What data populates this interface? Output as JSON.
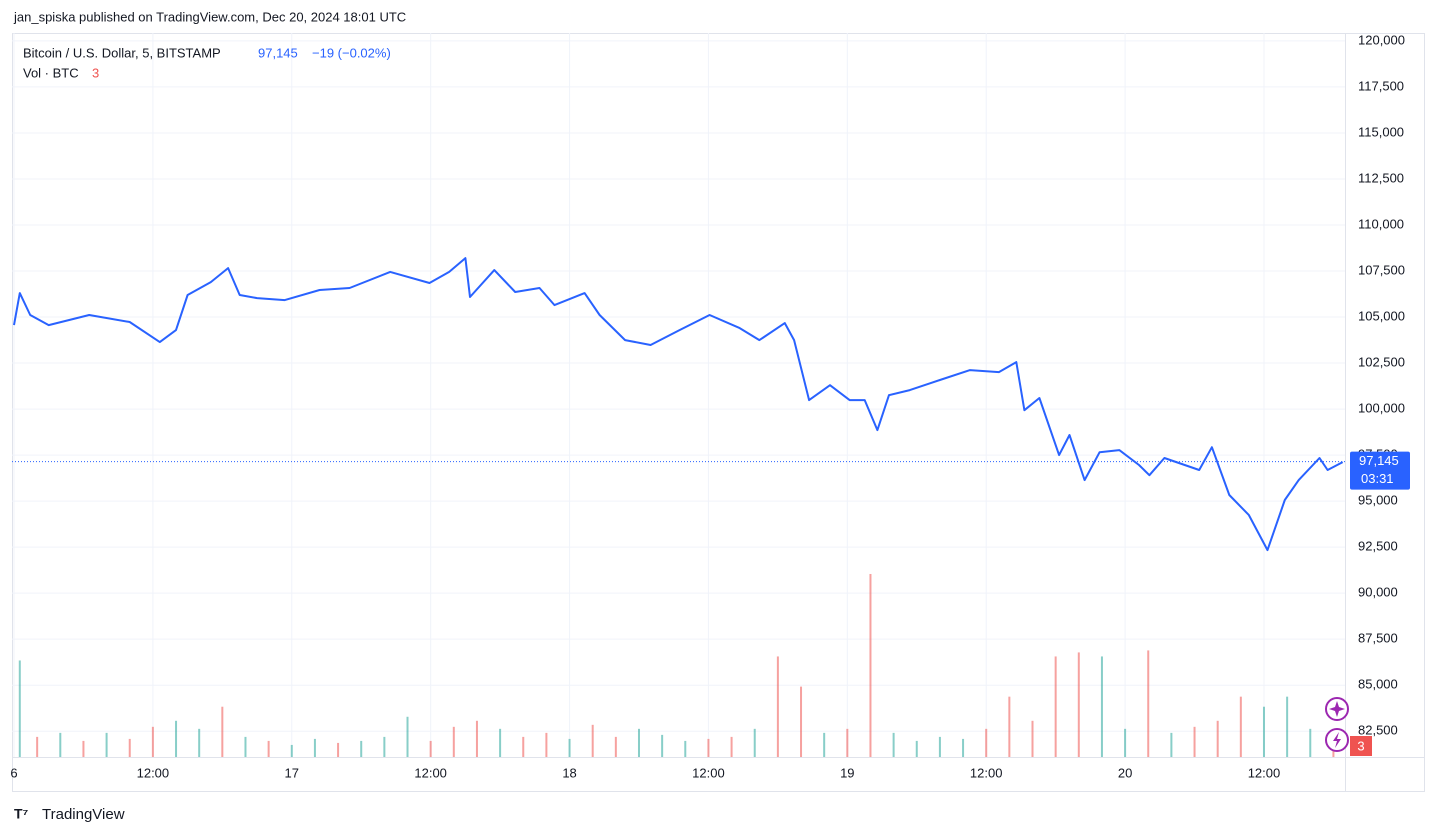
{
  "header": "jan_spiska published on TradingView.com, Dec 20, 2024 18:01 UTC",
  "footer": "TradingView",
  "chart_data": {
    "type": "line",
    "symbol": "Bitcoin / U.S. Dollar, 5, BITSTAMP",
    "last_price": {
      "value": 97145,
      "label": "97,145"
    },
    "change": "−19 (−0.02%)",
    "countdown": "03:31",
    "volume_title": "Vol · BTC",
    "volume_last": 3,
    "xlim": [
      0,
      115
    ],
    "xticks": [
      {
        "value": 0,
        "label": "6"
      },
      {
        "value": 12,
        "label": "12:00"
      },
      {
        "value": 24,
        "label": "17"
      },
      {
        "value": 36,
        "label": "12:00"
      },
      {
        "value": 48,
        "label": "18"
      },
      {
        "value": 60,
        "label": "12:00"
      },
      {
        "value": 72,
        "label": "19"
      },
      {
        "value": 84,
        "label": "12:00"
      },
      {
        "value": 96,
        "label": "20"
      },
      {
        "value": 108,
        "label": "12:00"
      }
    ],
    "ylim": [
      81100,
      120430
    ],
    "yticks": [
      {
        "value": 82500,
        "label": "82,500"
      },
      {
        "value": 85000,
        "label": "85,000"
      },
      {
        "value": 87500,
        "label": "87,500"
      },
      {
        "value": 90000,
        "label": "90,000"
      },
      {
        "value": 92500,
        "label": "92,500"
      },
      {
        "value": 95000,
        "label": "95,000"
      },
      {
        "value": 97500,
        "label": "97,500"
      },
      {
        "value": 100000,
        "label": "100,000"
      },
      {
        "value": 102500,
        "label": "102,500"
      },
      {
        "value": 105000,
        "label": "105,000"
      },
      {
        "value": 107500,
        "label": "107,500"
      },
      {
        "value": 110000,
        "label": "110,000"
      },
      {
        "value": 112500,
        "label": "112,500"
      },
      {
        "value": 115000,
        "label": "115,000"
      },
      {
        "value": 117500,
        "label": "117,500"
      },
      {
        "value": 120000,
        "label": "120,000"
      }
    ],
    "y2lim": [
      0,
      360
    ],
    "grid": true,
    "x": [
      0,
      0.5,
      1.4,
      3,
      6.5,
      10,
      12.6,
      14,
      15,
      17,
      18.5,
      19.5,
      21,
      23.4,
      26.4,
      29,
      32.5,
      35.9,
      37.6,
      39,
      39.4,
      41.5,
      43.3,
      45.4,
      46.7,
      49.3,
      50.6,
      52.8,
      55,
      57.5,
      60.1,
      62.7,
      64.4,
      66.6,
      67.4,
      68.7,
      70.5,
      72.2,
      73.5,
      74.6,
      75.6,
      77.4,
      80,
      82.6,
      85.1,
      86.6,
      87.3,
      88.6,
      90.3,
      91.2,
      92.5,
      93.8,
      95.5,
      97.2,
      98.1,
      99.4,
      102.4,
      103.5,
      105,
      106.7,
      108.3,
      109.8,
      111,
      112.8,
      113.5,
      114.8
    ],
    "series": [
      {
        "color": "#2962ff",
        "values": [
          104560,
          106300,
          105110,
          104560,
          105110,
          104730,
          103640,
          104290,
          106200,
          106900,
          107660,
          106200,
          106030,
          105920,
          106470,
          106580,
          107450,
          106850,
          107450,
          108200,
          106090,
          107550,
          106360,
          106580,
          105650,
          106300,
          105110,
          103750,
          103480,
          104290,
          105110,
          104400,
          103750,
          104670,
          103750,
          100490,
          101300,
          100490,
          100490,
          98860,
          100760,
          101030,
          101580,
          102120,
          102010,
          102550,
          99940,
          100600,
          97500,
          98590,
          96140,
          97660,
          97770,
          96960,
          96410,
          97340,
          96690,
          97930,
          95330,
          94240,
          92340,
          95060,
          96140,
          97340,
          96690,
          97120
        ]
      },
      {
        "type": "bar",
        "axis": "y2",
        "x": [
          0.5,
          2,
          4,
          6,
          8,
          10,
          12,
          14,
          16,
          18,
          20,
          22,
          24,
          26,
          28,
          30,
          32,
          34,
          36,
          38,
          40,
          42,
          44,
          46,
          48,
          50,
          52,
          54,
          56,
          58,
          60,
          62,
          64,
          66,
          68,
          70,
          72,
          74,
          76,
          78,
          80,
          82,
          84,
          86,
          88,
          90,
          92,
          94,
          96,
          98,
          100,
          102,
          104,
          106,
          108,
          110,
          112,
          114
        ],
        "values": [
          48,
          10,
          12,
          8,
          12,
          9,
          15,
          18,
          14,
          25,
          10,
          8,
          6,
          9,
          7,
          8,
          10,
          20,
          8,
          15,
          18,
          14,
          10,
          12,
          9,
          16,
          10,
          14,
          11,
          8,
          9,
          10,
          14,
          50,
          35,
          12,
          14,
          91,
          12,
          8,
          10,
          9,
          14,
          30,
          18,
          50,
          52,
          50,
          14,
          53,
          12,
          15,
          18,
          30,
          25,
          30,
          14,
          10
        ],
        "colors": [
          "#26a69a",
          "#ef5350",
          "#26a69a",
          "#ef5350",
          "#26a69a",
          "#ef5350",
          "#ef5350",
          "#26a69a",
          "#26a69a",
          "#ef5350",
          "#26a69a",
          "#ef5350",
          "#26a69a",
          "#26a69a",
          "#ef5350",
          "#26a69a",
          "#26a69a",
          "#26a69a",
          "#ef5350",
          "#ef5350",
          "#ef5350",
          "#26a69a",
          "#ef5350",
          "#ef5350",
          "#26a69a",
          "#ef5350",
          "#ef5350",
          "#26a69a",
          "#26a69a",
          "#26a69a",
          "#ef5350",
          "#ef5350",
          "#26a69a",
          "#ef5350",
          "#ef5350",
          "#26a69a",
          "#ef5350",
          "#ef5350",
          "#26a69a",
          "#26a69a",
          "#26a69a",
          "#26a69a",
          "#ef5350",
          "#ef5350",
          "#ef5350",
          "#ef5350",
          "#ef5350",
          "#26a69a",
          "#26a69a",
          "#ef5350",
          "#26a69a",
          "#ef5350",
          "#ef5350",
          "#ef5350",
          "#26a69a",
          "#26a69a",
          "#26a69a",
          "#ef5350"
        ]
      }
    ]
  }
}
